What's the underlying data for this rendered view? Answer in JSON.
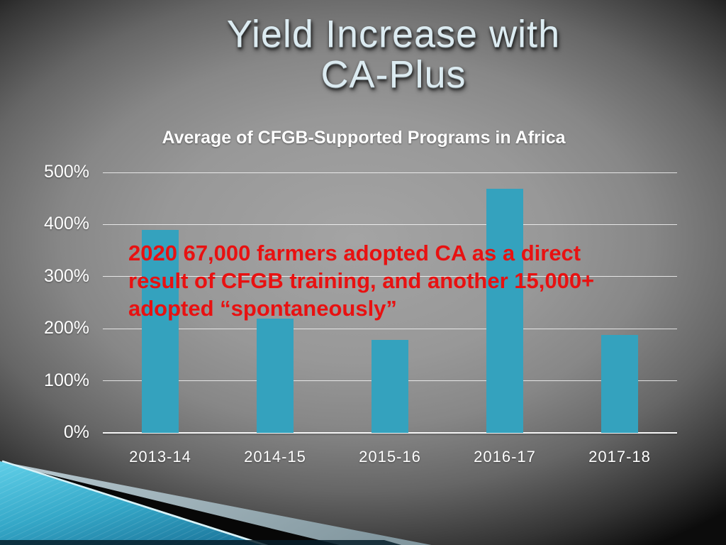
{
  "slide": {
    "title_line1": "Yield Increase with",
    "title_line2": "CA-Plus",
    "annotation": {
      "lines": [
        "2020 67,000 farmers adopted CA as a direct",
        "result of CFGB training, and another 15,000+",
        "adopted “spontaneously”"
      ]
    }
  },
  "chart_data": {
    "type": "bar",
    "title": "Average of CFGB-Supported Programs in Africa",
    "categories": [
      "2013-14",
      "2014-15",
      "2015-16",
      "2016-17",
      "2017-18"
    ],
    "values": [
      390,
      220,
      178,
      468,
      188
    ],
    "unit": "%",
    "xlabel": "",
    "ylabel": "",
    "ylim": [
      0,
      500
    ],
    "yticks": [
      0,
      100,
      200,
      300,
      400,
      500
    ],
    "ytick_labels": [
      "0%",
      "100%",
      "200%",
      "300%",
      "400%",
      "500%"
    ],
    "grid": true,
    "legend": "none"
  },
  "theme": {
    "bar_color": "#34a2be",
    "annotation_color": "#e81111",
    "title_color": "#dcebf1",
    "text_color": "#ffffff",
    "grid_color": "#ffffffc7",
    "axis_color": "#f7f7f7",
    "accent_teal": "#45b9d6",
    "accent_silver": "#a9bdc5",
    "accent_black": "#070707"
  }
}
